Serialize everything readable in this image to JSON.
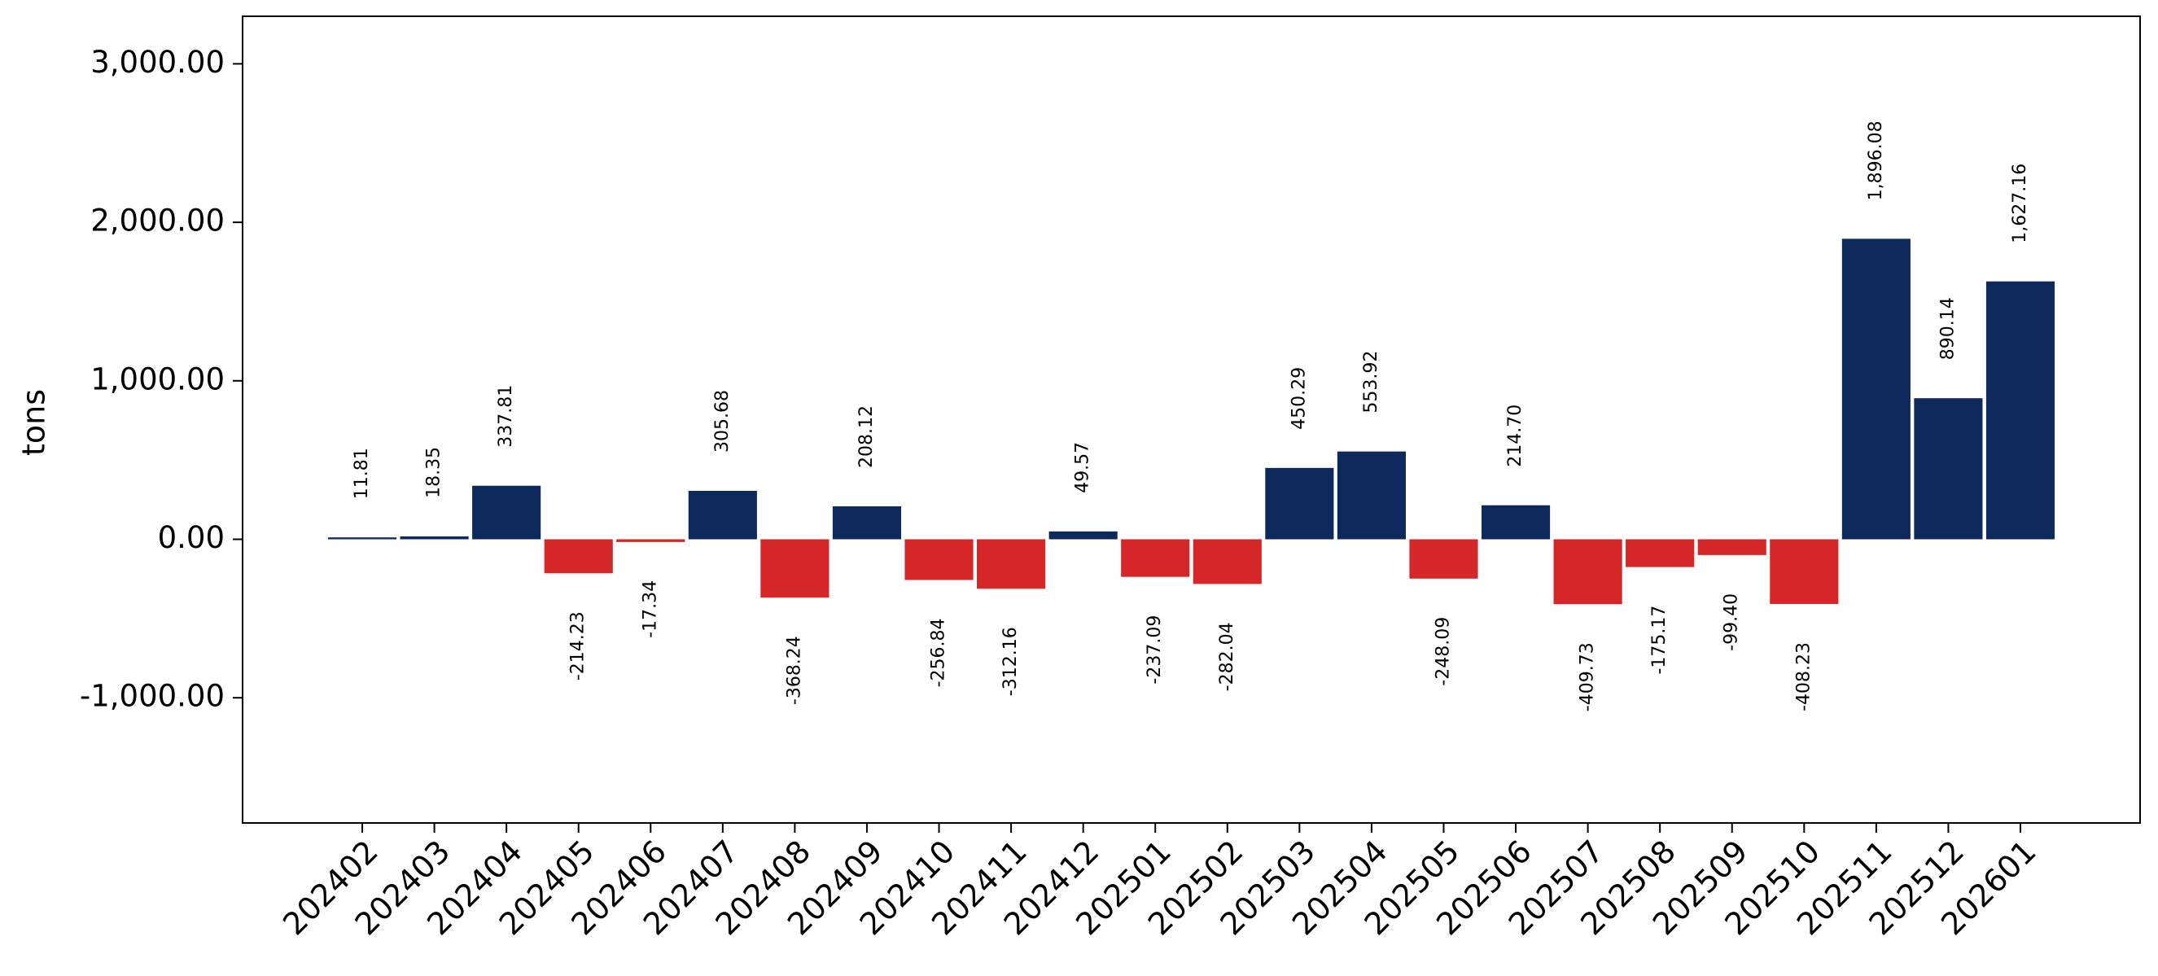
{
  "chart_data": {
    "type": "bar",
    "y_label": "tons",
    "categories": [
      "202402",
      "202403",
      "202404",
      "202405",
      "202406",
      "202407",
      "202408",
      "202409",
      "202410",
      "202411",
      "202412",
      "202501",
      "202502",
      "202503",
      "202504",
      "202505",
      "202506",
      "202507",
      "202508",
      "202509",
      "202510",
      "202511",
      "202512",
      "202601"
    ],
    "values": [
      11.81,
      18.35,
      337.81,
      -214.23,
      -17.34,
      305.68,
      -368.24,
      208.12,
      -256.84,
      -312.16,
      49.57,
      -237.09,
      -282.04,
      450.29,
      553.92,
      -248.09,
      214.7,
      -409.73,
      -175.17,
      -99.4,
      -408.23,
      1896.08,
      890.14,
      1627.16
    ],
    "value_labels": [
      "11.81",
      "18.35",
      "337.81",
      "-214.23",
      "-17.34",
      "305.68",
      "-368.24",
      "208.12",
      "-256.84",
      "-312.16",
      "49.57",
      "-237.09",
      "-282.04",
      "450.29",
      "553.92",
      "-248.09",
      "214.70",
      "-409.73",
      "-175.17",
      "-99.40",
      "-408.23",
      "1,896.08",
      "890.14",
      "1,627.16"
    ],
    "color": "#0e2a5c",
    "negative_color": "#d62728",
    "ylim": [
      -1790,
      3300
    ],
    "yticks": [
      {
        "value": -1000,
        "label": "-1,000.00"
      },
      {
        "value": 0,
        "label": "0.00"
      },
      {
        "value": 1000,
        "label": "1,000.00"
      },
      {
        "value": 2000,
        "label": "2,000.00"
      },
      {
        "value": 3000,
        "label": "3,000.00"
      }
    ],
    "grid": false
  }
}
